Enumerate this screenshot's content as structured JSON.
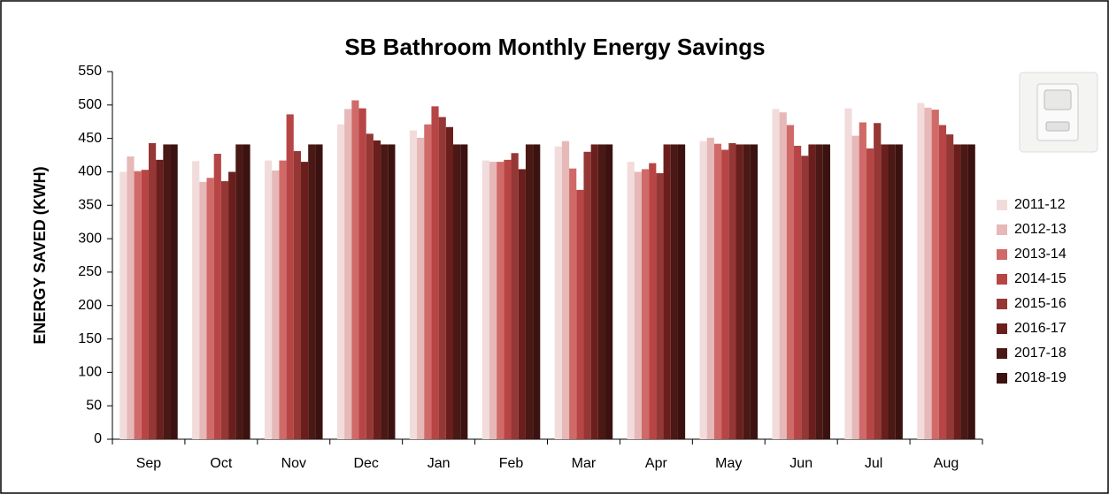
{
  "chart_data": {
    "type": "bar",
    "title": "SB Bathroom Monthly Energy Savings",
    "y_label": "ENERGY SAVED (KWH)",
    "categories": [
      "Sep",
      "Oct",
      "Nov",
      "Dec",
      "Jan",
      "Feb",
      "Mar",
      "Apr",
      "May",
      "Jun",
      "Jul",
      "Aug"
    ],
    "series": [
      {
        "name": "2011-12",
        "color": "#f2dcdb",
        "values": [
          400,
          416,
          417,
          471,
          462,
          417,
          438,
          415,
          446,
          494,
          495,
          503
        ]
      },
      {
        "name": "2012-13",
        "color": "#e6b8b7",
        "values": [
          423,
          385,
          402,
          494,
          451,
          415,
          446,
          400,
          451,
          489,
          454,
          496
        ]
      },
      {
        "name": "2013-14",
        "color": "#d06a68",
        "values": [
          401,
          391,
          417,
          507,
          471,
          415,
          405,
          404,
          442,
          470,
          474,
          493
        ]
      },
      {
        "name": "2014-15",
        "color": "#b84545",
        "values": [
          403,
          427,
          486,
          495,
          498,
          418,
          373,
          413,
          433,
          439,
          435,
          470
        ]
      },
      {
        "name": "2015-16",
        "color": "#953735",
        "values": [
          443,
          386,
          431,
          457,
          482,
          428,
          430,
          398,
          443,
          424,
          473,
          456
        ]
      },
      {
        "name": "2016-17",
        "color": "#6b1f1d",
        "values": [
          418,
          400,
          415,
          447,
          467,
          404,
          441,
          441,
          441,
          441,
          441,
          441
        ]
      },
      {
        "name": "2017-18",
        "color": "#4a1815",
        "values": [
          441,
          441,
          441,
          441,
          441,
          441,
          441,
          441,
          441,
          441,
          441,
          441
        ]
      },
      {
        "name": "2018-19",
        "color": "#3b1210",
        "values": [
          441,
          441,
          441,
          441,
          441,
          441,
          441,
          441,
          441,
          441,
          441,
          441
        ]
      }
    ],
    "ylim": [
      0,
      550
    ],
    "yticks": [
      0,
      50,
      100,
      150,
      200,
      250,
      300,
      350,
      400,
      450,
      500,
      550
    ],
    "grid": false,
    "legend": "right"
  }
}
